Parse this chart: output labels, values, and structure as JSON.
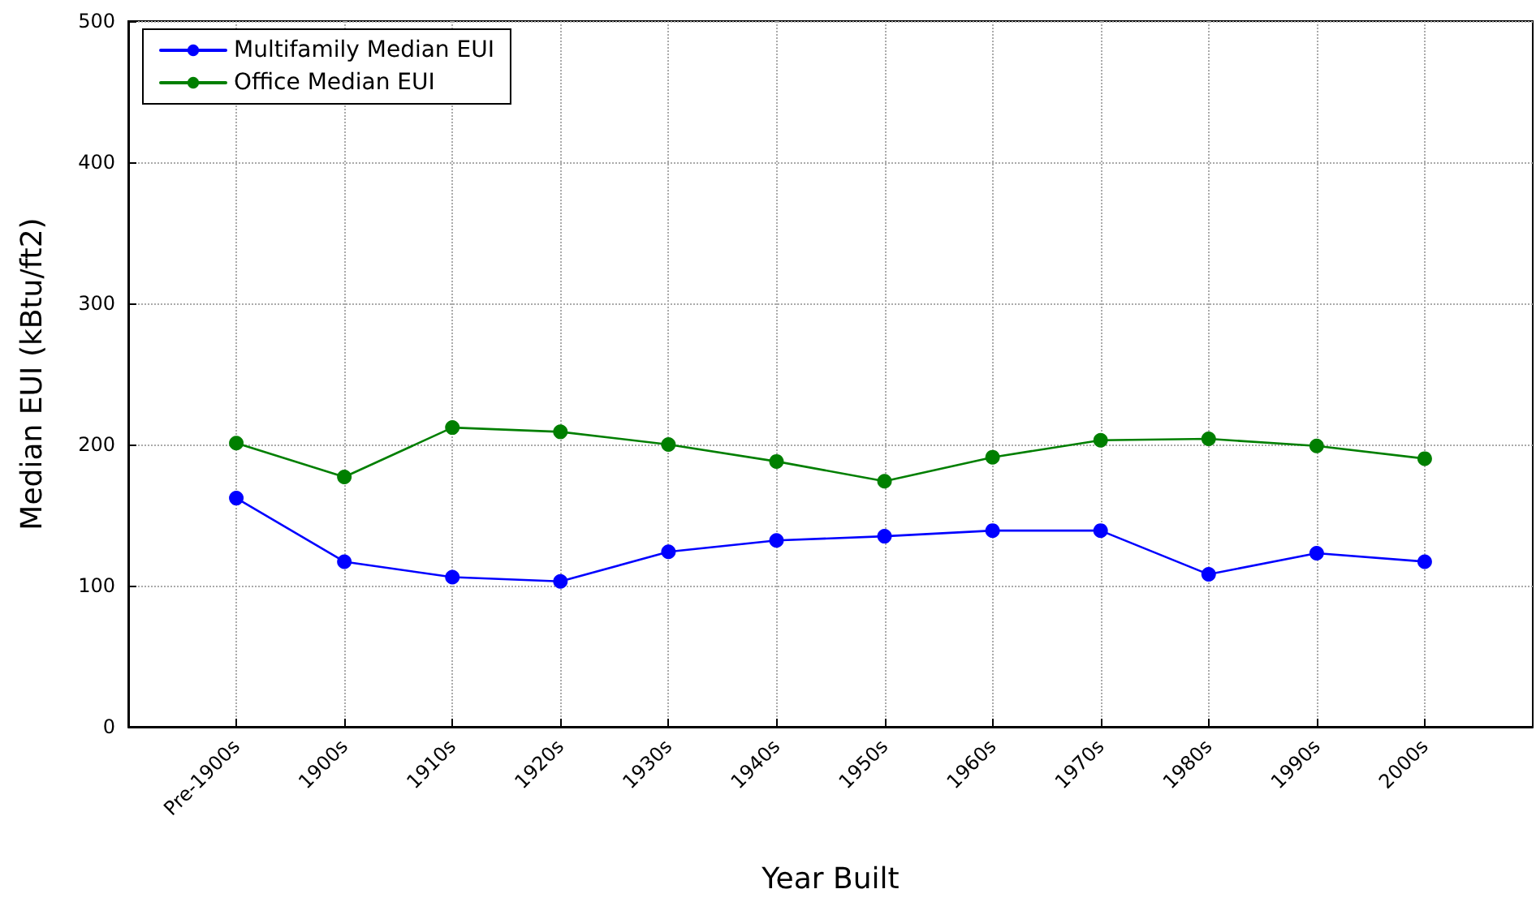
{
  "chart_data": {
    "type": "line",
    "xlabel": "Year Built",
    "ylabel": "Median EUI (kBtu/ft2)",
    "categories": [
      "Pre-1900s",
      "1900s",
      "1910s",
      "1920s",
      "1930s",
      "1940s",
      "1950s",
      "1960s",
      "1970s",
      "1980s",
      "1990s",
      "2000s"
    ],
    "series": [
      {
        "name": "Multifamily Median EUI",
        "color": "#0000ff",
        "values": [
          162,
          117,
          106,
          103,
          124,
          132,
          135,
          139,
          139,
          108,
          123,
          117
        ]
      },
      {
        "name": "Office Median EUI",
        "color": "#007f00",
        "values": [
          201,
          177,
          212,
          209,
          200,
          188,
          174,
          191,
          203,
          204,
          199,
          190
        ]
      }
    ],
    "ylim": [
      0,
      500
    ],
    "yticks": [
      0,
      100,
      200,
      300,
      400,
      500
    ],
    "grid": true,
    "legend": "top left",
    "marker": "circle",
    "line_style": "solid"
  }
}
